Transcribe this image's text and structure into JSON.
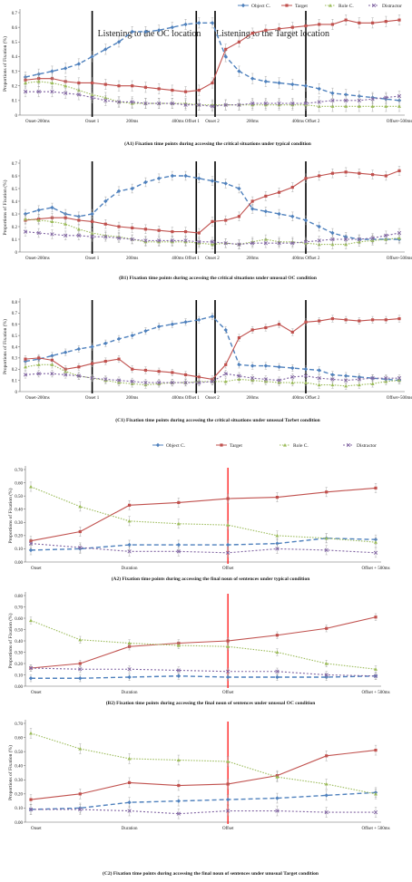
{
  "legend_names": [
    "Object C.",
    "Target",
    "Role C.",
    "Distractor"
  ],
  "colors": {
    "object": "#4f81bd",
    "target": "#c0504d",
    "role": "#9bbb59",
    "distractor": "#8064a2"
  },
  "chart_data": [
    {
      "type": "line",
      "title": "(A1) Fixation time points during accessing the critical situations under typical condition",
      "ylabel": "Proportions of Fixation (%)",
      "ylim": [
        0,
        0.7
      ],
      "yticks": [
        "0",
        "0.1",
        "0.2",
        "0.3",
        "0.4",
        "0.5",
        "0.6",
        "0.7"
      ],
      "annotations": [
        "Listening to the OC location",
        "Listening to the Target location"
      ],
      "x_labels": [
        {
          "label": "Onset-200ms",
          "at": 0
        },
        {
          "label": "Onset 1",
          "at": 5
        },
        {
          "label": "200ms",
          "at": 8
        },
        {
          "label": "400ms Offset 1",
          "at": 12
        },
        {
          "label": "Onset 2",
          "at": 14
        },
        {
          "label": "200ms",
          "at": 17
        },
        {
          "label": "400ms Offset 2",
          "at": 21
        },
        {
          "label": "Offset+500ms",
          "at": 28
        }
      ],
      "n_points": 29,
      "vlines": [
        5,
        13,
        14,
        21
      ],
      "series": [
        {
          "name": "Object C.",
          "values": [
            0.26,
            0.28,
            0.3,
            0.32,
            0.35,
            0.4,
            0.45,
            0.5,
            0.57,
            0.57,
            0.58,
            0.6,
            0.62,
            0.63,
            0.63,
            0.4,
            0.3,
            0.25,
            0.23,
            0.22,
            0.21,
            0.2,
            0.18,
            0.15,
            0.14,
            0.13,
            0.12,
            0.11,
            0.1
          ]
        },
        {
          "name": "Target",
          "values": [
            0.24,
            0.25,
            0.25,
            0.23,
            0.22,
            0.22,
            0.21,
            0.2,
            0.2,
            0.19,
            0.18,
            0.17,
            0.16,
            0.17,
            0.22,
            0.45,
            0.5,
            0.56,
            0.58,
            0.59,
            0.6,
            0.61,
            0.62,
            0.62,
            0.65,
            0.63,
            0.63,
            0.64,
            0.65
          ]
        },
        {
          "name": "Role C.",
          "values": [
            0.22,
            0.23,
            0.22,
            0.2,
            0.17,
            0.14,
            0.12,
            0.09,
            0.08,
            0.08,
            0.08,
            0.08,
            0.08,
            0.07,
            0.07,
            0.07,
            0.07,
            0.07,
            0.07,
            0.07,
            0.07,
            0.07,
            0.06,
            0.06,
            0.06,
            0.06,
            0.06,
            0.06,
            0.06
          ]
        },
        {
          "name": "Distractor",
          "values": [
            0.16,
            0.16,
            0.16,
            0.15,
            0.14,
            0.12,
            0.1,
            0.09,
            0.09,
            0.08,
            0.08,
            0.08,
            0.07,
            0.07,
            0.06,
            0.07,
            0.07,
            0.08,
            0.08,
            0.08,
            0.08,
            0.08,
            0.09,
            0.1,
            0.1,
            0.1,
            0.11,
            0.12,
            0.13
          ]
        }
      ]
    },
    {
      "type": "line",
      "title": "(B1) Fixation time points during accessing the critical situations  under unusual OC condition",
      "ylabel": "Proportions of Fixation (%)",
      "ylim": [
        0,
        0.7
      ],
      "yticks": [
        "0",
        "0.1",
        "0.2",
        "0.3",
        "0.4",
        "0.5",
        "0.6",
        "0.7"
      ],
      "annotations": [],
      "x_labels": [
        {
          "label": "Onset-200ms",
          "at": 0
        },
        {
          "label": "Onset 1",
          "at": 5
        },
        {
          "label": "200ms",
          "at": 8
        },
        {
          "label": "400ms Offset 1",
          "at": 12
        },
        {
          "label": "Onset 2",
          "at": 14
        },
        {
          "label": "200ms",
          "at": 17
        },
        {
          "label": "400ms Offset 2",
          "at": 21
        },
        {
          "label": "Offset+500ms",
          "at": 28
        }
      ],
      "n_points": 29,
      "vlines": [
        5,
        13,
        14,
        21
      ],
      "series": [
        {
          "name": "Object C.",
          "values": [
            0.3,
            0.33,
            0.35,
            0.3,
            0.28,
            0.3,
            0.4,
            0.48,
            0.5,
            0.55,
            0.58,
            0.6,
            0.6,
            0.58,
            0.56,
            0.54,
            0.5,
            0.34,
            0.32,
            0.3,
            0.28,
            0.25,
            0.2,
            0.15,
            0.12,
            0.1,
            0.1,
            0.1,
            0.1
          ]
        },
        {
          "name": "Target",
          "values": [
            0.25,
            0.26,
            0.27,
            0.27,
            0.25,
            0.24,
            0.22,
            0.2,
            0.19,
            0.18,
            0.17,
            0.16,
            0.16,
            0.15,
            0.24,
            0.25,
            0.28,
            0.4,
            0.44,
            0.47,
            0.51,
            0.58,
            0.6,
            0.62,
            0.63,
            0.62,
            0.61,
            0.6,
            0.64
          ]
        },
        {
          "name": "Role C.",
          "values": [
            0.26,
            0.25,
            0.24,
            0.22,
            0.18,
            0.15,
            0.13,
            0.12,
            0.1,
            0.08,
            0.08,
            0.08,
            0.08,
            0.07,
            0.06,
            0.07,
            0.06,
            0.08,
            0.1,
            0.08,
            0.08,
            0.07,
            0.06,
            0.06,
            0.06,
            0.08,
            0.09,
            0.1,
            0.11
          ]
        },
        {
          "name": "Distractor",
          "values": [
            0.16,
            0.15,
            0.14,
            0.13,
            0.13,
            0.12,
            0.12,
            0.11,
            0.1,
            0.09,
            0.09,
            0.09,
            0.09,
            0.08,
            0.08,
            0.07,
            0.06,
            0.07,
            0.07,
            0.07,
            0.07,
            0.08,
            0.09,
            0.1,
            0.1,
            0.1,
            0.11,
            0.13,
            0.15
          ]
        }
      ]
    },
    {
      "type": "line",
      "title": "(C1) Fixation time points during accessing the critical situations under unusual Tarbet condition",
      "ylabel": "Proportions of Fixation (%)",
      "ylim": [
        0,
        0.8
      ],
      "yticks": [
        "0",
        "0.1",
        "0.2",
        "0.3",
        "0.4",
        "0.5",
        "0.6",
        "0.7",
        "0.8"
      ],
      "annotations": [],
      "x_labels": [
        {
          "label": "Onset-200ms",
          "at": 0
        },
        {
          "label": "Onset 1",
          "at": 5
        },
        {
          "label": "200ms",
          "at": 8
        },
        {
          "label": "400ms Offset 1",
          "at": 12
        },
        {
          "label": "Onset 2",
          "at": 14
        },
        {
          "label": "200ms",
          "at": 17
        },
        {
          "label": "400ms Offset 2",
          "at": 21
        },
        {
          "label": "Offset+500ms",
          "at": 28
        }
      ],
      "n_points": 29,
      "vlines": [
        5,
        13,
        14,
        21
      ],
      "series": [
        {
          "name": "Object C.",
          "values": [
            0.27,
            0.29,
            0.32,
            0.35,
            0.38,
            0.4,
            0.43,
            0.47,
            0.5,
            0.54,
            0.58,
            0.6,
            0.62,
            0.64,
            0.67,
            0.55,
            0.24,
            0.23,
            0.23,
            0.22,
            0.21,
            0.2,
            0.19,
            0.15,
            0.14,
            0.13,
            0.12,
            0.11,
            0.1
          ]
        },
        {
          "name": "Target",
          "values": [
            0.29,
            0.3,
            0.28,
            0.2,
            0.22,
            0.25,
            0.27,
            0.29,
            0.2,
            0.19,
            0.18,
            0.17,
            0.15,
            0.13,
            0.11,
            0.24,
            0.48,
            0.55,
            0.57,
            0.6,
            0.53,
            0.62,
            0.63,
            0.65,
            0.64,
            0.63,
            0.64,
            0.64,
            0.65
          ]
        },
        {
          "name": "Role C.",
          "values": [
            0.22,
            0.24,
            0.24,
            0.18,
            0.14,
            0.12,
            0.1,
            0.08,
            0.07,
            0.06,
            0.07,
            0.08,
            0.08,
            0.09,
            0.09,
            0.09,
            0.11,
            0.1,
            0.09,
            0.08,
            0.08,
            0.08,
            0.06,
            0.06,
            0.05,
            0.06,
            0.07,
            0.09,
            0.1
          ]
        },
        {
          "name": "Distractor",
          "values": [
            0.15,
            0.16,
            0.16,
            0.15,
            0.14,
            0.12,
            0.11,
            0.1,
            0.09,
            0.08,
            0.08,
            0.08,
            0.08,
            0.08,
            0.09,
            0.16,
            0.14,
            0.12,
            0.11,
            0.1,
            0.13,
            0.14,
            0.12,
            0.11,
            0.1,
            0.11,
            0.12,
            0.12,
            0.12
          ]
        }
      ]
    },
    {
      "type": "line",
      "title": "(A2) Fixation time points during accessing the final noun of sentences under typical condition",
      "ylabel": "Proportions of Fixation (%)",
      "ylim": [
        0,
        0.7
      ],
      "yticks": [
        "0.00",
        "0.10",
        "0.20",
        "0.30",
        "0.40",
        "0.50",
        "0.60",
        "0.70"
      ],
      "annotations": [],
      "x_labels": [
        {
          "label": "Onset",
          "at": 0
        },
        {
          "label": "Duration",
          "at": 2
        },
        {
          "label": "Offset",
          "at": 4
        },
        {
          "label": "Offset + 500ms",
          "at": 7
        }
      ],
      "n_points": 8,
      "vlines": [
        4
      ],
      "series": [
        {
          "name": "Object C.",
          "values": [
            0.09,
            0.1,
            0.13,
            0.13,
            0.13,
            0.14,
            0.18,
            0.17
          ]
        },
        {
          "name": "Target",
          "values": [
            0.16,
            0.23,
            0.43,
            0.45,
            0.48,
            0.49,
            0.53,
            0.56
          ]
        },
        {
          "name": "Role C.",
          "values": [
            0.57,
            0.42,
            0.31,
            0.29,
            0.28,
            0.2,
            0.18,
            0.15
          ]
        },
        {
          "name": "Distractor",
          "values": [
            0.14,
            0.11,
            0.08,
            0.08,
            0.07,
            0.1,
            0.09,
            0.07
          ]
        }
      ]
    },
    {
      "type": "line",
      "title": "(B2) Fixation time points during accessing the final noun of sentences under unusual OC condition",
      "ylabel": "Proportions of Fixation (%)",
      "ylim": [
        0,
        0.8
      ],
      "yticks": [
        "0.00",
        "0.10",
        "0.20",
        "0.30",
        "0.40",
        "0.50",
        "0.60",
        "0.70",
        "0.80"
      ],
      "annotations": [],
      "x_labels": [
        {
          "label": "Onset",
          "at": 0
        },
        {
          "label": "Duration",
          "at": 2
        },
        {
          "label": "Offset",
          "at": 4
        },
        {
          "label": "Offset + 500ms",
          "at": 7
        }
      ],
      "n_points": 8,
      "vlines": [
        4
      ],
      "series": [
        {
          "name": "Object C.",
          "values": [
            0.07,
            0.07,
            0.08,
            0.09,
            0.08,
            0.08,
            0.08,
            0.09
          ]
        },
        {
          "name": "Target",
          "values": [
            0.16,
            0.2,
            0.35,
            0.38,
            0.4,
            0.45,
            0.51,
            0.61
          ]
        },
        {
          "name": "Role C.",
          "values": [
            0.58,
            0.41,
            0.38,
            0.36,
            0.35,
            0.3,
            0.2,
            0.15
          ]
        },
        {
          "name": "Distractor",
          "values": [
            0.16,
            0.15,
            0.15,
            0.14,
            0.13,
            0.13,
            0.1,
            0.09
          ]
        }
      ]
    },
    {
      "type": "line",
      "title": "(C2) Fixation time points during accessing the final noun of sentences under unusual Target condition",
      "ylabel": "Proportions of Fixation (%)",
      "ylim": [
        0,
        0.7
      ],
      "yticks": [
        "0.00",
        "0.10",
        "0.20",
        "0.30",
        "0.40",
        "0.50",
        "0.60",
        "0.70"
      ],
      "annotations": [],
      "x_labels": [
        {
          "label": "Onset",
          "at": 0
        },
        {
          "label": "Duration",
          "at": 2
        },
        {
          "label": "Offset",
          "at": 4
        },
        {
          "label": "Offset + 500ms",
          "at": 7
        }
      ],
      "n_points": 8,
      "vlines": [
        4
      ],
      "series": [
        {
          "name": "Object C.",
          "values": [
            0.09,
            0.1,
            0.14,
            0.15,
            0.16,
            0.17,
            0.19,
            0.21
          ]
        },
        {
          "name": "Target",
          "values": [
            0.16,
            0.2,
            0.28,
            0.26,
            0.27,
            0.33,
            0.47,
            0.51
          ]
        },
        {
          "name": "Role C.",
          "values": [
            0.63,
            0.52,
            0.45,
            0.44,
            0.43,
            0.32,
            0.27,
            0.2
          ]
        },
        {
          "name": "Distractor",
          "values": [
            0.09,
            0.09,
            0.08,
            0.06,
            0.08,
            0.08,
            0.07,
            0.07
          ]
        }
      ]
    }
  ]
}
